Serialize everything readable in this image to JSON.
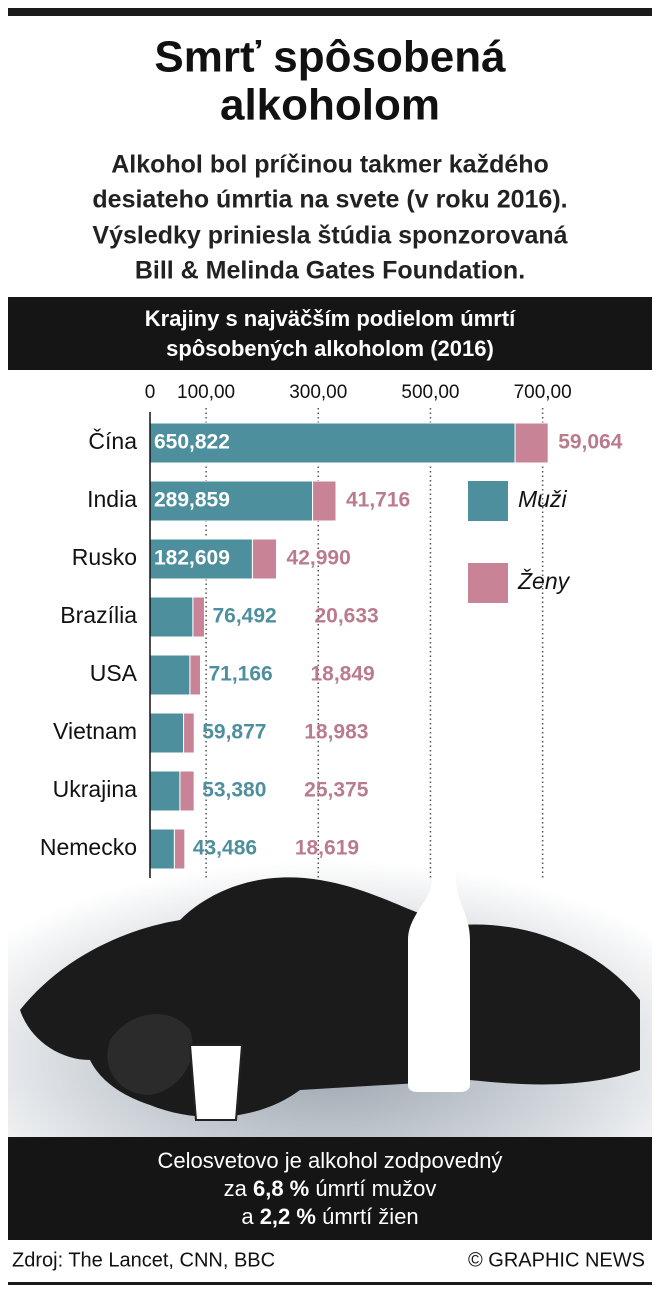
{
  "chart_data": {
    "type": "bar",
    "orientation": "horizontal",
    "stacked": true,
    "title": "Smrť spôsobená alkoholom",
    "title_lines": [
      "Smrť spôsobená",
      "alkoholom"
    ],
    "subtitle": [
      "Alkohol bol príčinou takmer každého",
      "desiateho úmrtia na svete (v roku 2016).",
      "Výsledky priniesla štúdia sponzorovaná",
      "Bill & Melinda Gates Foundation."
    ],
    "chart_title": [
      "Krajiny s najväčším podielom úmrtí",
      "spôsobených alkoholom (2016)"
    ],
    "categories": [
      "Čína",
      "India",
      "Rusko",
      "Brazília",
      "USA",
      "Vietnam",
      "Ukrajina",
      "Nemecko"
    ],
    "series": [
      {
        "name": "Muži",
        "color": "#4e8f9e",
        "label_color": "#4e8f9e",
        "values": [
          650822,
          289859,
          182609,
          76492,
          71166,
          59877,
          53380,
          43486
        ],
        "value_labels": [
          "650,822",
          "289,859",
          "182,609",
          "76,492",
          "71,166",
          "59,877",
          "53,380",
          "43,486"
        ]
      },
      {
        "name": "Ženy",
        "color": "#c98397",
        "label_color": "#bb7b8f",
        "values": [
          59064,
          41716,
          42990,
          20633,
          18849,
          18983,
          25375,
          18619
        ],
        "value_labels": [
          "59,064",
          "41,716",
          "42,990",
          "20,633",
          "18,849",
          "18,983",
          "25,375",
          "18,619"
        ]
      }
    ],
    "xlim": [
      0,
      870000
    ],
    "xticks": [
      0,
      {
        "value": 100000,
        "label": "100,00"
      },
      {
        "value": 300000,
        "label": "300,00"
      },
      {
        "value": 500000,
        "label": "500,00"
      },
      {
        "value": 700000,
        "label": "700,00"
      }
    ],
    "grid": true,
    "note": [
      "Celosvetovo je alkohol zodpovedný",
      "za",
      "6,8 %",
      "úmrtí mužov",
      "a",
      "2,2 %",
      "úmrtí žien"
    ],
    "source": "Zdroj: The Lancet, CNN, BBC",
    "credit": "© GRAPHIC NEWS"
  }
}
